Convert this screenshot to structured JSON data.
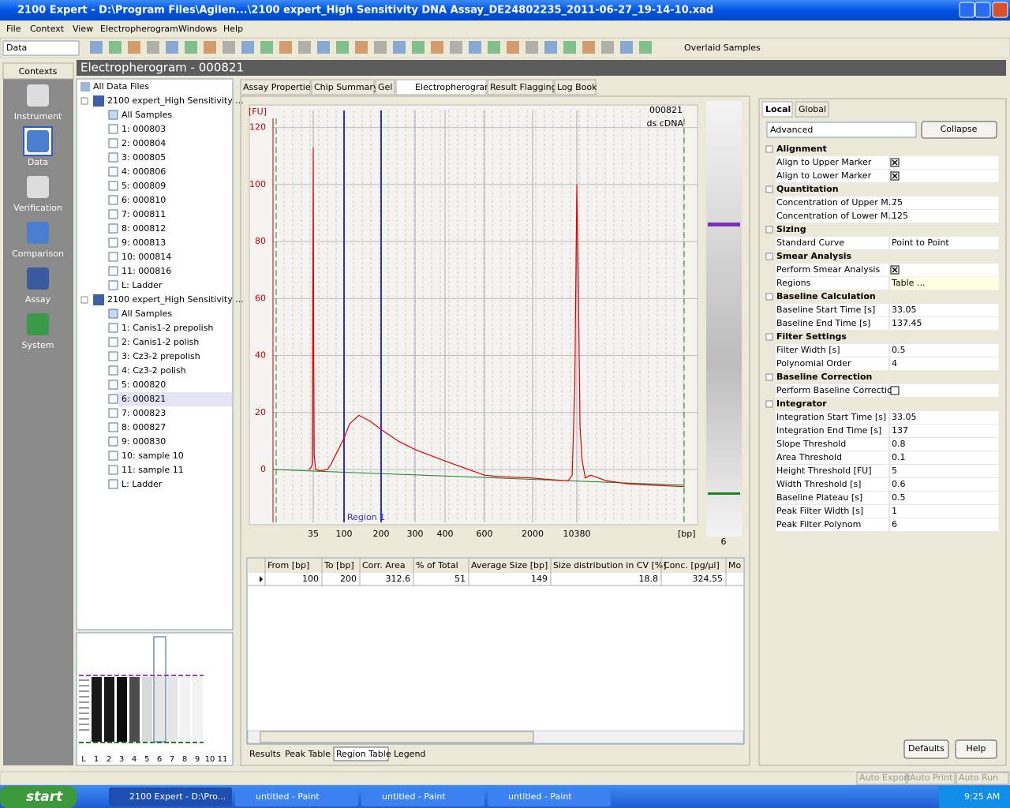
{
  "window": {
    "title": "2100 Expert - D:\\Program Files\\Agilen...\\2100 expert_High Sensitivity DNA Assay_DE24802235_2011-06-27_19-14-10.xad"
  },
  "menu": [
    "File",
    "Context",
    "View",
    "Electropherogram",
    "Windows",
    "Help"
  ],
  "toolbar": {
    "context_select": "Data",
    "view_select": "Overlaid Samples"
  },
  "contexts": {
    "title": "Contexts",
    "items": [
      "Instrument",
      "Data",
      "Verification",
      "Comparison",
      "Assay",
      "System"
    ]
  },
  "header": "Electropherogram - 000821",
  "tree": {
    "root": "All Data Files",
    "files": [
      {
        "name": "2100 expert_High Sensitivity ...",
        "items": [
          "All Samples",
          "1: 000803",
          "2: 000804",
          "3: 000805",
          "4: 000806",
          "5: 000809",
          "6: 000810",
          "7: 000811",
          "8: 000812",
          "9: 000813",
          "10: 000814",
          "11: 000816",
          "L: Ladder"
        ]
      },
      {
        "name": "2100 expert_High Sensitivity ...",
        "items": [
          "All Samples",
          "1: Canis1-2 prepolish",
          "2: Canis1-2 polish",
          "3: Cz3-2 prepolish",
          "4: Cz3-2 polish",
          "5: 000820",
          "6: 000821",
          "7: 000823",
          "8: 000827",
          "9: 000830",
          "10: sample 10",
          "11: sample 11",
          "L: Ladder"
        ]
      }
    ]
  },
  "gel_thumbnail": {
    "lanes": [
      "L",
      "1",
      "2",
      "3",
      "4",
      "5",
      "6",
      "7",
      "8",
      "9",
      "10",
      "11"
    ]
  },
  "tabs": [
    "Assay Properties",
    "Chip Summary",
    "Gel",
    "Electropherogram",
    "Result Flagging",
    "Log Book"
  ],
  "chart_data": {
    "type": "line",
    "y_label": "[FU]",
    "x_label": "[bp]",
    "sample": "000821",
    "sample_type": "ds cDNA",
    "xticks": [
      35,
      100,
      200,
      300,
      400,
      600,
      2000,
      10380
    ],
    "ylim": [
      -18,
      126
    ],
    "yticks": [
      0,
      20,
      40,
      60,
      80,
      100,
      120
    ],
    "grid": true,
    "series": [
      {
        "color": "#e00000",
        "x": [
          25,
          30,
          33,
          34,
          35,
          36,
          37,
          40,
          50,
          65,
          73,
          85,
          100,
          115,
          140,
          170,
          200,
          250,
          300,
          350,
          400,
          500,
          600,
          1000,
          2000,
          5000,
          8700,
          9500,
          10000,
          10380,
          10700,
          11000,
          11400,
          12000,
          13000,
          16000,
          20000,
          25000,
          30800
        ],
        "values": [
          0,
          0.5,
          2,
          60,
          113,
          40,
          5,
          0,
          -0.5,
          0,
          2,
          6,
          11,
          16,
          19,
          17,
          14,
          10,
          7,
          5,
          3,
          0.5,
          -2,
          -2.5,
          -3,
          -3.5,
          -4,
          -2,
          30,
          100,
          60,
          15,
          3,
          -3,
          -2,
          -4,
          -5,
          -5.5,
          -6
        ]
      }
    ],
    "region": {
      "label": "Region 1",
      "from": 100,
      "to": 200
    },
    "lane_label": "6"
  },
  "region_table": {
    "columns": [
      "From [bp]",
      "To [bp]",
      "Corr. Area",
      "% of Total",
      "Average Size [bp]",
      "Size distribution in CV [%]",
      "Conc. [pg/µl]",
      "Mo"
    ],
    "rows": [
      [
        "100",
        "200",
        "312.6",
        "51",
        "149",
        "18.8",
        "324.55",
        ""
      ]
    ]
  },
  "result_tabs": [
    "Results",
    "Peak Table",
    "Region Table",
    "Legend"
  ],
  "settings": {
    "tabs": [
      "Local",
      "Global"
    ],
    "mode": "Advanced",
    "collapse": "Collapse",
    "groups": [
      {
        "name": "Alignment",
        "rows": [
          [
            "Align to Upper Marker",
            true
          ],
          [
            "Align to Lower Marker",
            true
          ]
        ]
      },
      {
        "name": "Quantitation",
        "rows": [
          [
            "Concentration of Upper M...",
            "75"
          ],
          [
            "Concentration of Lower M...",
            "125"
          ]
        ]
      },
      {
        "name": "Sizing",
        "rows": [
          [
            "Standard Curve",
            "Point to Point"
          ]
        ]
      },
      {
        "name": "Smear Analysis",
        "rows": [
          [
            "Perform Smear Analysis",
            true
          ],
          [
            "Regions",
            "Table ..."
          ]
        ]
      },
      {
        "name": "Baseline Calculation",
        "rows": [
          [
            "Baseline Start Time [s]",
            "33.05"
          ],
          [
            "Baseline End Time [s]",
            "137.45"
          ]
        ]
      },
      {
        "name": "Filter Settings",
        "rows": [
          [
            "Filter Width [s]",
            "0.5"
          ],
          [
            "Polynomial Order",
            "4"
          ]
        ]
      },
      {
        "name": "Baseline Correction",
        "rows": [
          [
            "Perform Baseline Correction",
            false
          ]
        ]
      },
      {
        "name": "Integrator",
        "rows": [
          [
            "Integration Start Time [s]",
            "33.05"
          ],
          [
            "Integration End Time [s]",
            "137"
          ],
          [
            "Slope Threshold",
            "0.8"
          ],
          [
            "Area Threshold",
            "0.1"
          ],
          [
            "Height Threshold [FU]",
            "5"
          ],
          [
            "Width Threshold [s]",
            "0.6"
          ],
          [
            "Baseline Plateau [s]",
            "0.5"
          ],
          [
            "Peak Filter Width [s]",
            "1"
          ],
          [
            "Peak Filter Polynom",
            "6"
          ]
        ]
      }
    ],
    "buttons": [
      "Defaults",
      "Help"
    ]
  },
  "status": [
    "Auto Export",
    "Auto Print",
    "Auto Run"
  ],
  "taskbar": {
    "start": "start",
    "items": [
      "2100 Expert - D:\\Pro...",
      "untitled - Paint",
      "untitled - Paint",
      "untitled - Paint"
    ],
    "clock": "9:25 AM"
  }
}
